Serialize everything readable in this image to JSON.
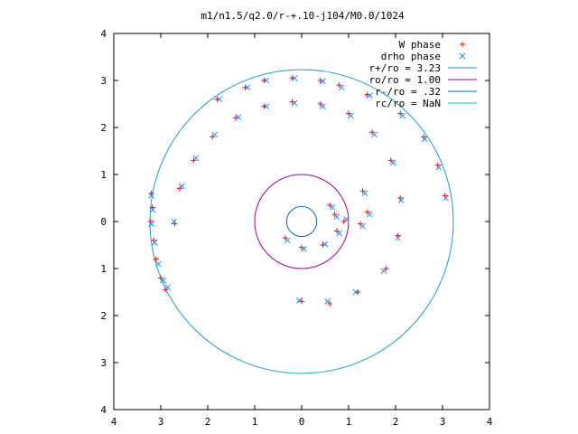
{
  "chart_data": {
    "type": "scatter",
    "title": "m1/n1.5/q2.0/r-+.10-j104/M0.0/1024",
    "xlabel": "",
    "ylabel": "",
    "xlim": [
      -4,
      4
    ],
    "ylim": [
      -4,
      4
    ],
    "x_ticks": [
      "4",
      "3",
      "2",
      "1",
      "0",
      "1",
      "2",
      "3",
      "4"
    ],
    "y_ticks": [
      "4",
      "3",
      "2",
      "1",
      "0",
      "1",
      "2",
      "3",
      "4"
    ],
    "grid": false,
    "legend_position": "top-right",
    "series": [
      {
        "name": "W phase",
        "marker": "plus",
        "color": "#ff0000",
        "points": [
          [
            -3.2,
            0.6
          ],
          [
            -3.18,
            0.3
          ],
          [
            -3.22,
            0.0
          ],
          [
            -3.15,
            -0.4
          ],
          [
            -3.1,
            -0.8
          ],
          [
            -3.0,
            -1.2
          ],
          [
            -2.9,
            -1.45
          ],
          [
            -2.7,
            -0.05
          ],
          [
            -2.6,
            0.7
          ],
          [
            -2.3,
            1.3
          ],
          [
            -1.9,
            1.8
          ],
          [
            -1.4,
            2.2
          ],
          [
            -0.8,
            2.45
          ],
          [
            -0.2,
            2.55
          ],
          [
            0.4,
            2.5
          ],
          [
            1.0,
            2.3
          ],
          [
            1.5,
            1.9
          ],
          [
            1.9,
            1.3
          ],
          [
            2.1,
            0.5
          ],
          [
            2.05,
            -0.3
          ],
          [
            1.8,
            -1.0
          ],
          [
            1.2,
            -1.5
          ],
          [
            0.6,
            -1.75
          ],
          [
            0.0,
            -1.7
          ],
          [
            -0.8,
            3.0
          ],
          [
            -0.2,
            3.05
          ],
          [
            0.4,
            3.0
          ],
          [
            0.8,
            2.9
          ],
          [
            -1.8,
            2.6
          ],
          [
            -1.2,
            2.85
          ],
          [
            1.4,
            2.7
          ],
          [
            2.1,
            2.3
          ],
          [
            2.6,
            1.8
          ],
          [
            2.9,
            1.2
          ],
          [
            3.05,
            0.55
          ],
          [
            0.6,
            0.35
          ],
          [
            0.7,
            0.15
          ],
          [
            1.3,
            0.65
          ],
          [
            1.4,
            0.2
          ],
          [
            1.25,
            -0.05
          ],
          [
            0.9,
            0.0
          ],
          [
            -0.35,
            -0.35
          ],
          [
            0.0,
            -0.55
          ],
          [
            0.45,
            -0.5
          ],
          [
            0.75,
            -0.2
          ]
        ]
      },
      {
        "name": "drho phase",
        "marker": "cross",
        "color": "#1e90ff",
        "points": [
          [
            -3.2,
            0.55
          ],
          [
            -3.17,
            0.25
          ],
          [
            -3.2,
            -0.05
          ],
          [
            -3.13,
            -0.45
          ],
          [
            -3.05,
            -0.9
          ],
          [
            -2.95,
            -1.25
          ],
          [
            -2.85,
            -1.4
          ],
          [
            -2.72,
            0.0
          ],
          [
            -2.55,
            0.75
          ],
          [
            -2.25,
            1.35
          ],
          [
            -1.85,
            1.85
          ],
          [
            -1.35,
            2.22
          ],
          [
            -0.75,
            2.45
          ],
          [
            -0.15,
            2.52
          ],
          [
            0.45,
            2.45
          ],
          [
            1.05,
            2.25
          ],
          [
            1.55,
            1.85
          ],
          [
            1.95,
            1.25
          ],
          [
            2.12,
            0.45
          ],
          [
            2.05,
            -0.35
          ],
          [
            1.75,
            -1.05
          ],
          [
            1.15,
            -1.5
          ],
          [
            0.55,
            -1.7
          ],
          [
            -0.05,
            -1.68
          ],
          [
            -0.75,
            3.0
          ],
          [
            -0.15,
            3.05
          ],
          [
            0.45,
            2.98
          ],
          [
            0.85,
            2.85
          ],
          [
            -1.75,
            2.6
          ],
          [
            -1.15,
            2.85
          ],
          [
            1.45,
            2.68
          ],
          [
            2.15,
            2.25
          ],
          [
            2.62,
            1.75
          ],
          [
            2.92,
            1.15
          ],
          [
            3.07,
            0.5
          ],
          [
            0.65,
            0.3
          ],
          [
            0.75,
            0.1
          ],
          [
            1.35,
            0.6
          ],
          [
            1.45,
            0.15
          ],
          [
            1.3,
            -0.1
          ],
          [
            0.95,
            0.05
          ],
          [
            -0.3,
            -0.4
          ],
          [
            0.05,
            -0.58
          ],
          [
            0.5,
            -0.48
          ],
          [
            0.8,
            -0.25
          ]
        ]
      }
    ],
    "circles": [
      {
        "name": "r+/ro = 3.23",
        "radius": 3.23,
        "color": "#1aa0c8"
      },
      {
        "name": "ro/ro = 1.00",
        "radius": 1.0,
        "color": "#a000a0"
      },
      {
        "name": "r-/ro = .32",
        "radius": 0.32,
        "color": "#0070c0"
      },
      {
        "name": "rc/ro = NaN",
        "radius": null,
        "color": "#00c0c0"
      }
    ]
  }
}
